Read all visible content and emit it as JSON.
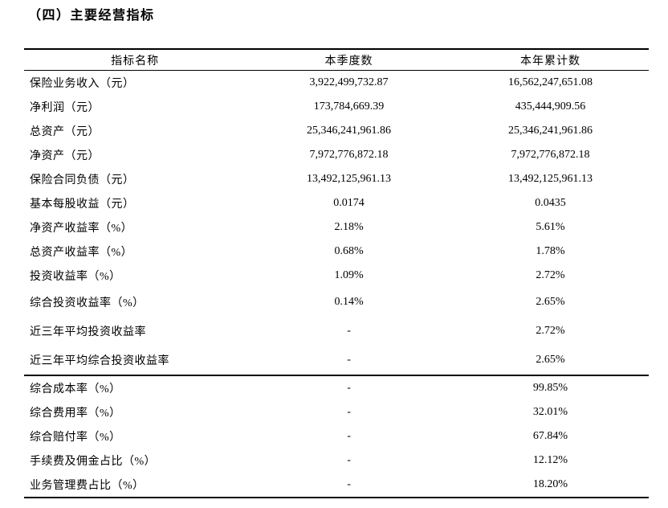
{
  "page": {
    "title": "（四）主要经营指标"
  },
  "table": {
    "headers": {
      "name": "指标名称",
      "quarter": "本季度数",
      "ytd": "本年累计数"
    },
    "rows_upper": [
      {
        "label": "保险业务收入（元）",
        "quarter": "3,922,499,732.87",
        "ytd": "16,562,247,651.08"
      },
      {
        "label": "净利润（元）",
        "quarter": "173,784,669.39",
        "ytd": "435,444,909.56"
      },
      {
        "label": "总资产（元）",
        "quarter": "25,346,241,961.86",
        "ytd": "25,346,241,961.86"
      },
      {
        "label": "净资产（元）",
        "quarter": "7,972,776,872.18",
        "ytd": "7,972,776,872.18"
      },
      {
        "label": "保险合同负债（元）",
        "quarter": "13,492,125,961.13",
        "ytd": "13,492,125,961.13"
      },
      {
        "label": "基本每股收益（元）",
        "quarter": "0.0174",
        "ytd": "0.0435"
      },
      {
        "label": "净资产收益率（%）",
        "quarter": "2.18%",
        "ytd": "5.61%"
      },
      {
        "label": "总资产收益率（%）",
        "quarter": "0.68%",
        "ytd": "1.78%"
      },
      {
        "label": "投资收益率（%）",
        "quarter": "1.09%",
        "ytd": "2.72%"
      },
      {
        "label": "综合投资收益率（%）",
        "quarter": "0.14%",
        "ytd": "2.65%"
      },
      {
        "label": "近三年平均投资收益率",
        "quarter": "-",
        "ytd": "2.72%"
      },
      {
        "label": "近三年平均综合投资收益率",
        "quarter": "-",
        "ytd": "2.65%"
      }
    ],
    "rows_lower": [
      {
        "label": "综合成本率（%）",
        "quarter": "-",
        "ytd": "99.85%"
      },
      {
        "label": "综合费用率（%）",
        "quarter": "-",
        "ytd": "32.01%"
      },
      {
        "label": "综合赔付率（%）",
        "quarter": "-",
        "ytd": "67.84%"
      },
      {
        "label": "手续费及佣金占比（%）",
        "quarter": "-",
        "ytd": "12.12%"
      },
      {
        "label": "业务管理费占比（%）",
        "quarter": "-",
        "ytd": "18.20%"
      }
    ]
  }
}
